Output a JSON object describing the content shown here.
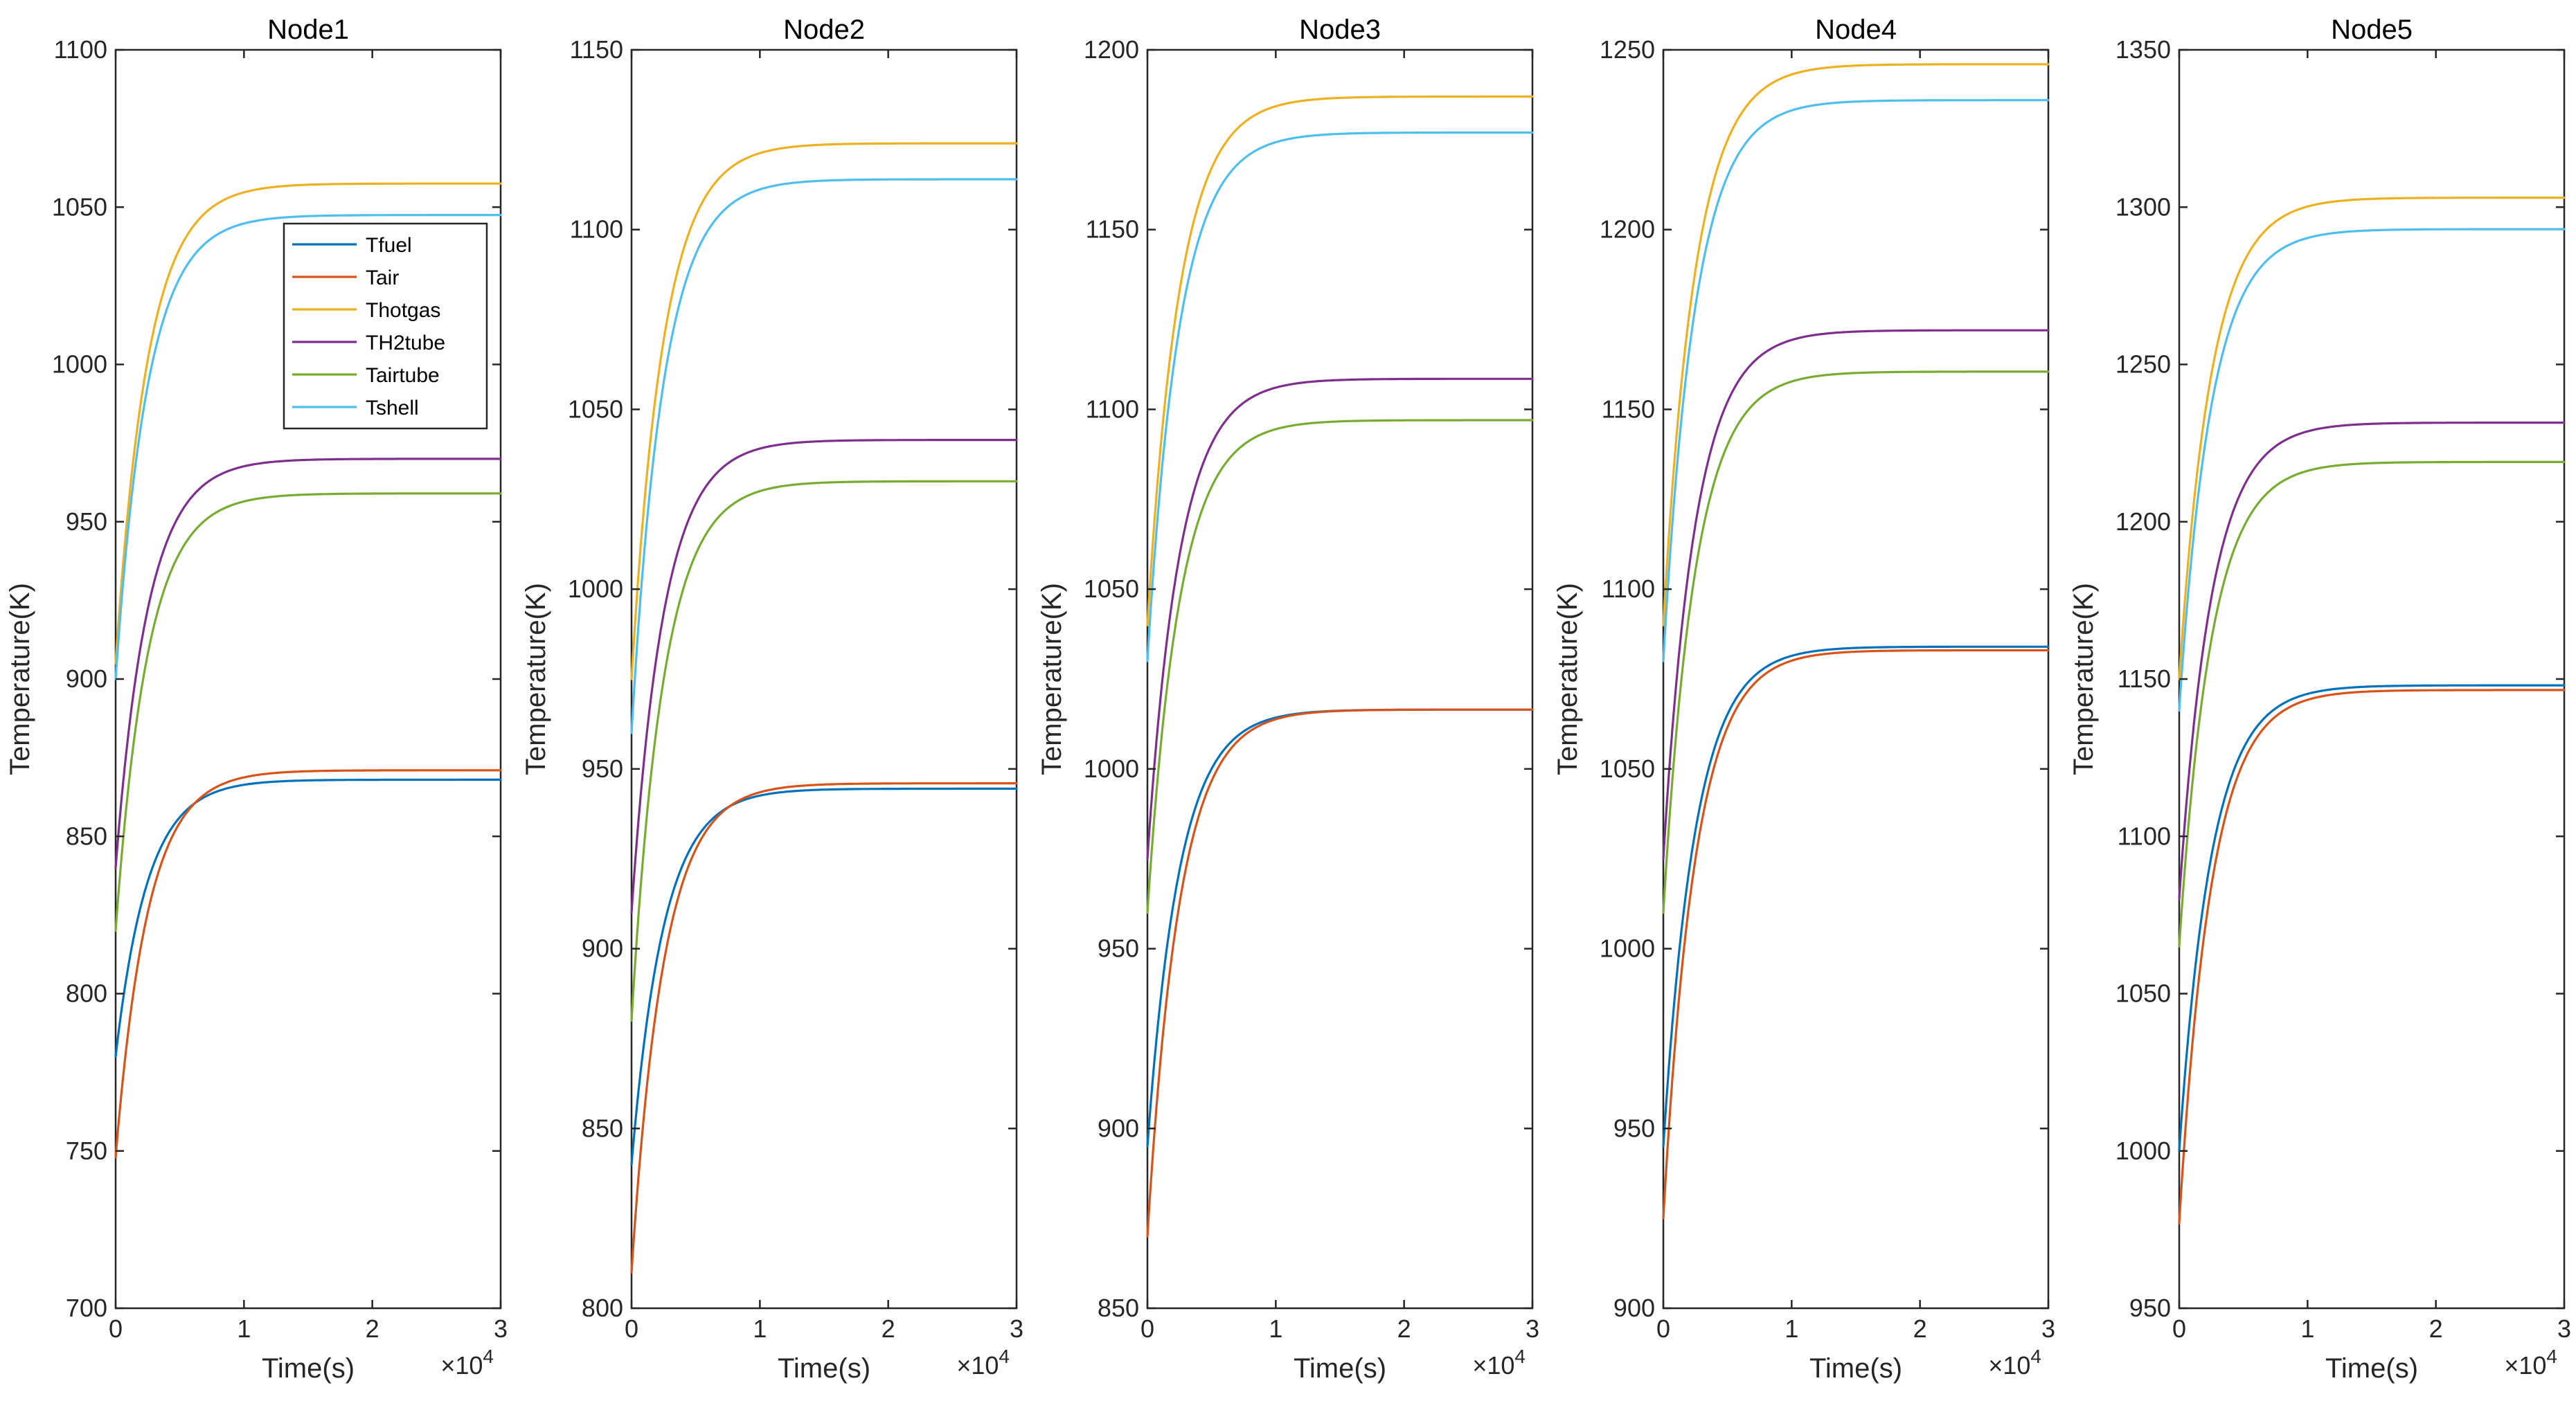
{
  "chart_data": {
    "type": "line",
    "xlabel": "Time(s)",
    "ylabel": "Temperature(K)",
    "x_exponent_label": "×10",
    "x_exponent": "4",
    "xlim": [
      0,
      3
    ],
    "xticks": [
      "0",
      "1",
      "2",
      "3"
    ],
    "x_scale_note": "x values in units of 10^4 s",
    "legend": {
      "placement": "top-right (inside Node1)",
      "entries": [
        "Tfuel",
        "Tair",
        "Thotgas",
        "TH2tube",
        "Tairtube",
        "Tshell"
      ]
    },
    "series_colors": {
      "Tfuel": "#0072BD",
      "Tair": "#D95319",
      "Thotgas": "#EDB120",
      "TH2tube": "#7E2F8E",
      "Tairtube": "#77AC30",
      "Tshell": "#4DBEEE"
    },
    "time_constant_1e4s": 0.25,
    "panels": [
      {
        "title": "Node1",
        "ylim": [
          700,
          1100
        ],
        "yticks": [
          "700",
          "750",
          "800",
          "850",
          "900",
          "950",
          "1000",
          "1050",
          "1100"
        ],
        "series": [
          {
            "name": "Tfuel",
            "start": 780,
            "end": 868
          },
          {
            "name": "Tair",
            "start": 748,
            "end": 871
          },
          {
            "name": "Thotgas",
            "start": 905,
            "end": 1057.5
          },
          {
            "name": "TH2tube",
            "start": 840,
            "end": 970
          },
          {
            "name": "Tairtube",
            "start": 820,
            "end": 959
          },
          {
            "name": "Tshell",
            "start": 900,
            "end": 1047.5
          }
        ]
      },
      {
        "title": "Node2",
        "ylim": [
          800,
          1150
        ],
        "yticks": [
          "800",
          "850",
          "900",
          "950",
          "1000",
          "1050",
          "1100",
          "1150"
        ],
        "series": [
          {
            "name": "Tfuel",
            "start": 840,
            "end": 944.5
          },
          {
            "name": "Tair",
            "start": 810,
            "end": 946
          },
          {
            "name": "Thotgas",
            "start": 975,
            "end": 1124
          },
          {
            "name": "TH2tube",
            "start": 910,
            "end": 1041.5
          },
          {
            "name": "Tairtube",
            "start": 880,
            "end": 1030
          },
          {
            "name": "Tshell",
            "start": 960,
            "end": 1114
          }
        ]
      },
      {
        "title": "Node3",
        "ylim": [
          850,
          1200
        ],
        "yticks": [
          "850",
          "900",
          "950",
          "1000",
          "1050",
          "1100",
          "1150",
          "1200"
        ],
        "series": [
          {
            "name": "Tfuel",
            "start": 895,
            "end": 1016.5
          },
          {
            "name": "Tair",
            "start": 870,
            "end": 1016.5
          },
          {
            "name": "Thotgas",
            "start": 1040,
            "end": 1187
          },
          {
            "name": "TH2tube",
            "start": 975,
            "end": 1108.5
          },
          {
            "name": "Tairtube",
            "start": 960,
            "end": 1097
          },
          {
            "name": "Tshell",
            "start": 1030,
            "end": 1177
          }
        ]
      },
      {
        "title": "Node4",
        "ylim": [
          900,
          1250
        ],
        "yticks": [
          "900",
          "950",
          "1000",
          "1050",
          "1100",
          "1150",
          "1200",
          "1250"
        ],
        "series": [
          {
            "name": "Tfuel",
            "start": 945,
            "end": 1084
          },
          {
            "name": "Tair",
            "start": 925,
            "end": 1083
          },
          {
            "name": "Thotgas",
            "start": 1090,
            "end": 1246
          },
          {
            "name": "TH2tube",
            "start": 1025,
            "end": 1172
          },
          {
            "name": "Tairtube",
            "start": 1010,
            "end": 1160.5
          },
          {
            "name": "Tshell",
            "start": 1080,
            "end": 1236
          }
        ]
      },
      {
        "title": "Node5",
        "ylim": [
          950,
          1350
        ],
        "yticks": [
          "950",
          "1000",
          "1050",
          "1100",
          "1150",
          "1200",
          "1250",
          "1300",
          "1350"
        ],
        "series": [
          {
            "name": "Tfuel",
            "start": 1000,
            "end": 1148
          },
          {
            "name": "Tair",
            "start": 977,
            "end": 1146.5
          },
          {
            "name": "Thotgas",
            "start": 1150,
            "end": 1303
          },
          {
            "name": "TH2tube",
            "start": 1080,
            "end": 1231.5
          },
          {
            "name": "Tairtube",
            "start": 1065,
            "end": 1219
          },
          {
            "name": "Tshell",
            "start": 1140,
            "end": 1293
          }
        ]
      }
    ]
  }
}
